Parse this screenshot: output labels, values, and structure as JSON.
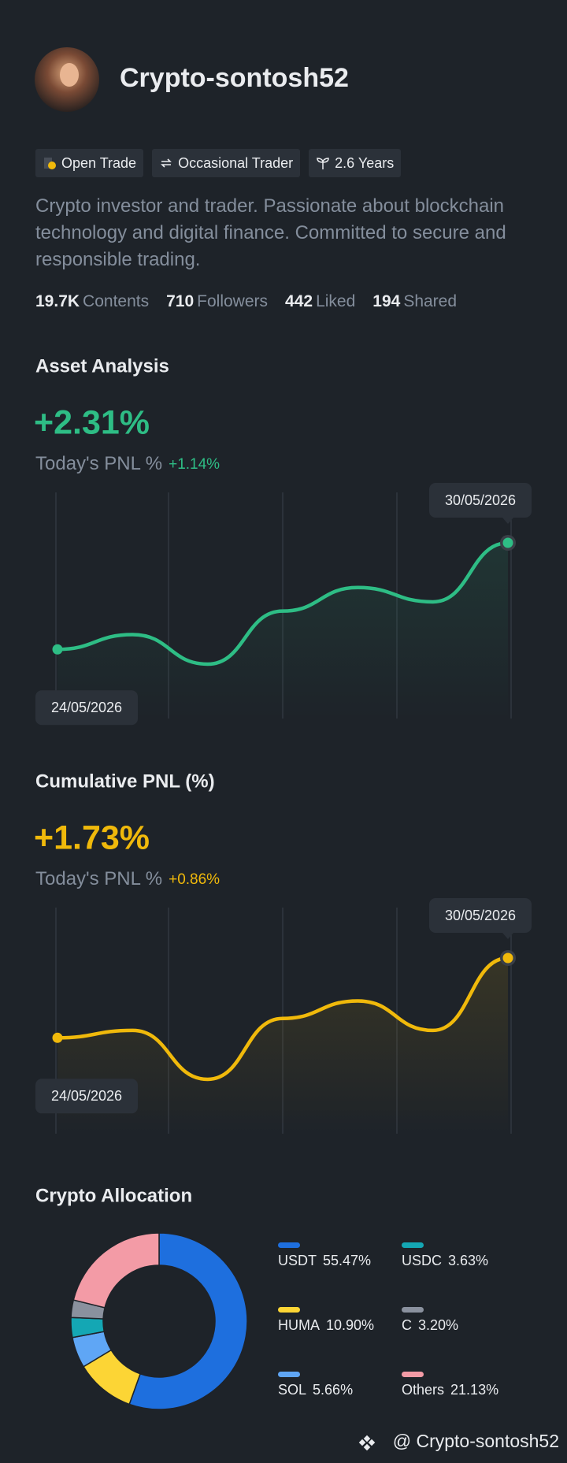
{
  "profile": {
    "name": "Crypto-sontosh52",
    "tags": [
      "Open Trade",
      "Occasional Trader",
      "2.6 Years"
    ],
    "bio": "Crypto investor and trader. Passionate about blockchain technology and digital finance. Committed to secure and responsible trading.",
    "stats": [
      {
        "value": "19.7K",
        "label": "Contents"
      },
      {
        "value": 710,
        "label": "Followers"
      },
      {
        "value": 442,
        "label": "Liked"
      },
      {
        "value": 194,
        "label": "Shared"
      }
    ]
  },
  "chart_data": [
    {
      "type": "line",
      "title": "Asset Analysis",
      "headline": "+2.31%",
      "subtitle": "Today's PNL %",
      "change": "+1.14%",
      "categories": [
        "24/05/2026",
        null,
        null,
        null,
        null,
        null,
        "30/05/2026"
      ],
      "values": [
        0,
        0.32,
        -0.32,
        0.83,
        1.34,
        1.03,
        2.31
      ],
      "color": "#2ebd85"
    },
    {
      "type": "line",
      "title": "Cumulative PNL (%)",
      "headline": "+1.73%",
      "subtitle": "Today's PNL %",
      "change": "+0.86%",
      "categories": [
        "24/05/2026",
        null,
        null,
        null,
        null,
        null,
        "30/05/2026"
      ],
      "values": [
        0,
        0.16,
        -0.9,
        0.42,
        0.8,
        0.16,
        1.73
      ],
      "color": "#f0b90b"
    },
    {
      "type": "pie",
      "title": "Crypto Allocation",
      "categories": [
        "USDT",
        "HUMA",
        "SOL",
        "USDC",
        "C",
        "Others"
      ],
      "values": [
        55.47,
        10.9,
        5.66,
        3.63,
        3.2,
        21.13
      ],
      "value_labels": [
        "55.47%",
        "10.90%",
        "5.66%",
        "3.63%",
        "3.20%",
        "21.13%"
      ],
      "colors": [
        "#1e6fde",
        "#fcd535",
        "#5fa6f5",
        "#14a7b4",
        "#8a919e",
        "#f39ba6"
      ]
    }
  ],
  "footer": "@ Crypto-sontosh52"
}
